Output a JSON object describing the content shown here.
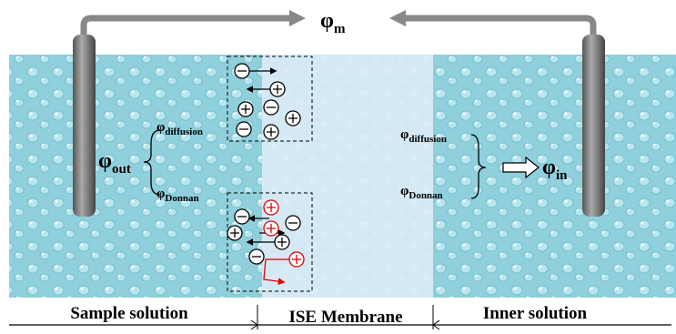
{
  "potentials": {
    "membrane": {
      "symbol": "φ",
      "subscript": "m"
    },
    "outer": {
      "symbol": "φ",
      "subscript": "out"
    },
    "outer_diffusion": {
      "symbol": "φ",
      "subscript": "diffusion"
    },
    "outer_donnan": {
      "symbol": "φ",
      "subscript": "Donnan"
    },
    "inner_diffusion": {
      "symbol": "φ",
      "subscript": "diffusion"
    },
    "inner_donnan": {
      "symbol": "φ",
      "subscript": "Donnan"
    },
    "inner": {
      "symbol": "φ",
      "subscript": "in"
    }
  },
  "regions": [
    "Sample solution",
    "ISE Membrane",
    "Inner solution"
  ]
}
